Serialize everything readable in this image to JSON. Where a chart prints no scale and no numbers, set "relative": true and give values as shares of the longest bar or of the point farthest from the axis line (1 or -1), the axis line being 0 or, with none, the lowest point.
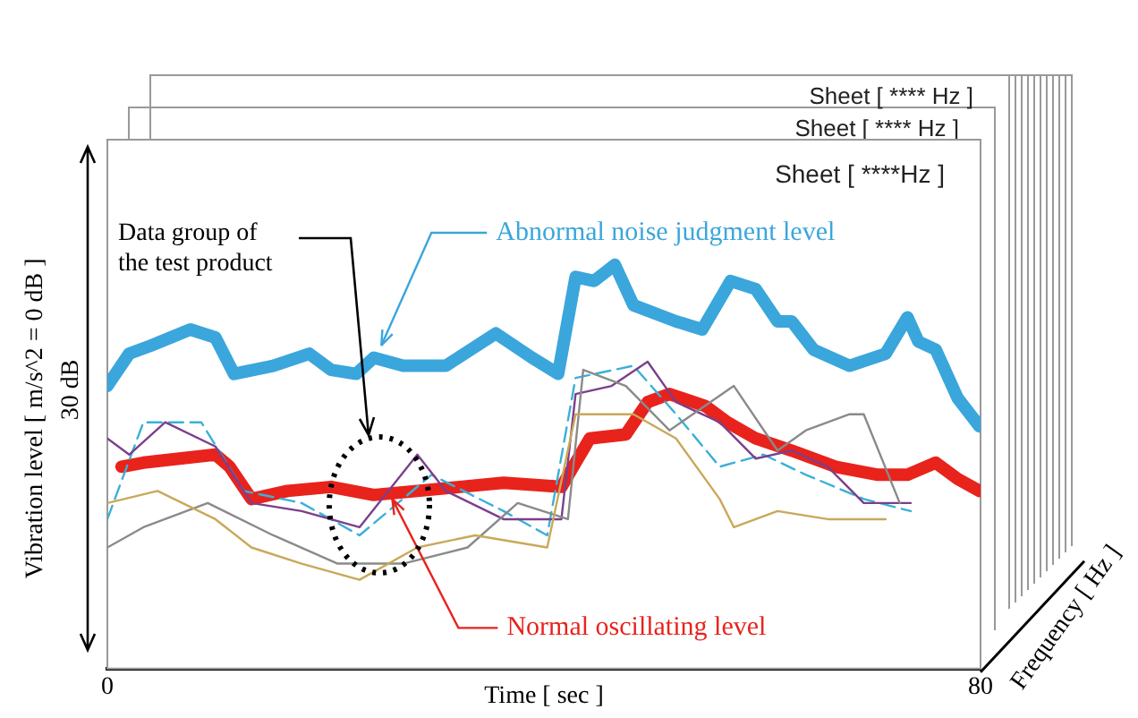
{
  "chart_data": {
    "type": "line",
    "title": "Sheet [ ****Hz ]",
    "xlabel": "Time [ sec ]",
    "ylabel": "Vibration level [ m/s^2 = 0 dB ]",
    "relative": true,
    "xlim": [
      0,
      80
    ],
    "xticks": [
      0,
      80
    ],
    "legend": false,
    "marker": "none",
    "line_style": "solid",
    "annotations": [
      "Data group of\nthe test product",
      {
        "text": "Abnormal noise judgment level",
        "x": 25.1,
        "y": 0.8
      },
      {
        "text": "Normal oscillating level",
        "x": 26.1,
        "y": 0.42
      },
      "30 dB",
      "Frequency [ Hz ]",
      "Sheet [ **** Hz ]",
      "Sheet [ **** Hz ]"
    ],
    "series": [
      {
        "color": "#c9a85a",
        "x": [
          0,
          4.6,
          9.9,
          13.2,
          17.8,
          23.1,
          28.4,
          33.7,
          40.3,
          42.9,
          48.2,
          52.1,
          56.1,
          57.4,
          61.4,
          66,
          71.3
        ],
        "values": [
          0.41,
          0.44,
          0.37,
          0.3,
          0.26,
          0.22,
          0.3,
          0.33,
          0.3,
          0.63,
          0.63,
          0.57,
          0.42,
          0.35,
          0.39,
          0.37,
          0.37
        ]
      },
      {
        "color": "#8a8a8a",
        "x": [
          0,
          3.3,
          9.2,
          15.2,
          21.1,
          27.1,
          33,
          37.6,
          42.2,
          43.6,
          47.5,
          51.5,
          57.4,
          61.4,
          64,
          68,
          69.3,
          72.6
        ],
        "values": [
          0.3,
          0.35,
          0.41,
          0.33,
          0.26,
          0.26,
          0.3,
          0.41,
          0.37,
          0.74,
          0.7,
          0.59,
          0.7,
          0.54,
          0.59,
          0.63,
          0.63,
          0.41
        ]
      },
      {
        "color": "#7b3f8c",
        "x": [
          0,
          2,
          5.3,
          9.9,
          13.2,
          17.8,
          23.1,
          28.4,
          31,
          36.3,
          41.6,
          42.9,
          46.2,
          49.5,
          52.1,
          56.1,
          59.4,
          62.7,
          66,
          69.3,
          73.6
        ],
        "values": [
          0.57,
          0.53,
          0.61,
          0.55,
          0.41,
          0.39,
          0.35,
          0.53,
          0.44,
          0.37,
          0.37,
          0.68,
          0.7,
          0.76,
          0.66,
          0.61,
          0.52,
          0.54,
          0.5,
          0.41,
          0.41
        ]
      },
      {
        "color": "#3ab0d8",
        "line_style": "dashed",
        "x": [
          0,
          3.3,
          8.6,
          12.5,
          17.8,
          23.1,
          29.7,
          36.3,
          40.3,
          42.9,
          48.2,
          52.1,
          56.1,
          60.1,
          64,
          69.3,
          73.6
        ],
        "values": [
          0.37,
          0.61,
          0.61,
          0.44,
          0.41,
          0.33,
          0.48,
          0.39,
          0.33,
          0.72,
          0.75,
          0.63,
          0.5,
          0.53,
          0.48,
          0.42,
          0.39
        ]
      },
      {
        "color": "#3aa6dc",
        "x": [
          0,
          2,
          4,
          7.6,
          9.9,
          11.6,
          15.2,
          18.5,
          20.5,
          22.8,
          24.4,
          27.1,
          31,
          35.6,
          38.9,
          41.3,
          42.9,
          44.6,
          46.5,
          48.2,
          52.1,
          54.5,
          57.1,
          59.4,
          61.4,
          62.7,
          64.7,
          68,
          71.3,
          73.3,
          74.3,
          75.9,
          77.9,
          79.9
        ],
        "values": [
          0.7,
          0.78,
          0.8,
          0.84,
          0.82,
          0.73,
          0.75,
          0.78,
          0.74,
          0.73,
          0.77,
          0.75,
          0.75,
          0.83,
          0.77,
          0.73,
          0.97,
          0.96,
          1,
          0.9,
          0.86,
          0.84,
          0.96,
          0.94,
          0.86,
          0.86,
          0.79,
          0.75,
          0.78,
          0.87,
          0.81,
          0.79,
          0.67,
          0.6
        ]
      },
      {
        "color": "#e8231c",
        "x": [
          1.3,
          3.3,
          6.6,
          9.9,
          11.2,
          13.2,
          16.5,
          20.5,
          24.4,
          28.4,
          32.3,
          36.3,
          41.6,
          42.9,
          44.2,
          47.5,
          49.5,
          51.5,
          54.8,
          56.8,
          59.4,
          62.7,
          66.7,
          70.6,
          73.3,
          75.9,
          77.9,
          79.9
        ],
        "values": [
          0.5,
          0.51,
          0.52,
          0.53,
          0.5,
          0.42,
          0.44,
          0.45,
          0.43,
          0.44,
          0.45,
          0.46,
          0.45,
          0.51,
          0.57,
          0.58,
          0.66,
          0.68,
          0.65,
          0.61,
          0.57,
          0.54,
          0.5,
          0.48,
          0.48,
          0.51,
          0.47,
          0.44
        ]
      }
    ]
  }
}
